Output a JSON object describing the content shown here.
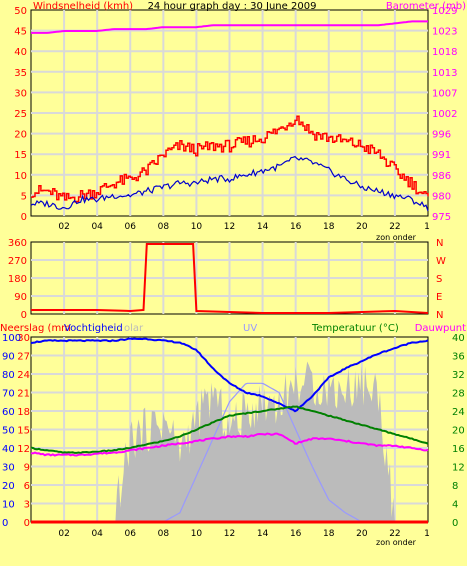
{
  "title": "24 hour graph day : 30 June 2009",
  "colors": {
    "background": "#ffff99",
    "grid": "#d9d9d9",
    "wind": "#ff0000",
    "gust": "#0000cc",
    "barometer": "#ff00ff",
    "humidity": "#0000ff",
    "temperature": "#008000",
    "dewpoint": "#ff00ff",
    "rain": "#ff0000",
    "solar": "#bbbbbb",
    "uv": "#9999ff",
    "direction": "#ff0000"
  },
  "panel1": {
    "left_label": "Windsnelheid (kmh)",
    "right_label": "Barometer (mb)",
    "left_ticks": [
      "50",
      "45",
      "40",
      "35",
      "30",
      "25",
      "20",
      "15",
      "10",
      "5",
      "0"
    ],
    "right_ticks": [
      "1029",
      "1023",
      "1018",
      "1013",
      "1007",
      "1002",
      "996",
      "991",
      "986",
      "980",
      "975"
    ],
    "x_ticks": [
      "02",
      "04",
      "06",
      "08",
      "10",
      "12",
      "14",
      "16",
      "18",
      "20",
      "22"
    ],
    "x_end": "1",
    "zon_onder": "zon onder"
  },
  "panel2": {
    "left_ticks": [
      "360",
      "270",
      "180",
      "90",
      "0"
    ],
    "right_ticks": [
      "N",
      "W",
      "S",
      "E",
      "N"
    ]
  },
  "panel3": {
    "left_label": "Neerslag (mm",
    "humidity_label": "Vochtigheid",
    "solar_label": "olar",
    "uv_label": "UV",
    "right_label": "Temperatuur (°C)",
    "dew_label": "Dauwpunt",
    "rain_ticks": [
      "30",
      "27",
      "24",
      "21",
      "18",
      "15",
      "12",
      "9",
      "6",
      "3",
      "0"
    ],
    "humidity_ticks": [
      "100",
      "90",
      "80",
      "70",
      "60",
      "50",
      "40",
      "30",
      "20",
      "10",
      "0"
    ],
    "temp_ticks": [
      "40",
      "36",
      "32",
      "28",
      "24",
      "20",
      "16",
      "12",
      "8",
      "4",
      "0"
    ],
    "x_ticks": [
      "02",
      "04",
      "06",
      "08",
      "10",
      "12",
      "14",
      "16",
      "18",
      "20",
      "22"
    ],
    "x_end": "1",
    "zon_onder": "zon onder"
  },
  "chart_data": [
    {
      "type": "line",
      "xlabel": "",
      "ylabel": "Windsnelheid (kmh)",
      "y2label": "Barometer (mb)",
      "ylim": [
        0,
        50
      ],
      "y2lim": [
        975,
        1029
      ],
      "x_hours": [
        0,
        1,
        2,
        3,
        4,
        5,
        6,
        7,
        8,
        9,
        10,
        11,
        12,
        13,
        14,
        15,
        16,
        17,
        18,
        19,
        20,
        21,
        22,
        23,
        24
      ],
      "series": [
        {
          "name": "Windsnelheid",
          "axis": "left",
          "values": [
            6,
            6,
            4,
            5,
            6,
            8,
            9,
            11,
            15,
            17,
            16,
            17,
            17,
            18,
            19,
            21,
            24,
            20,
            19,
            18,
            17,
            15,
            11,
            8,
            4
          ]
        },
        {
          "name": "Windstoten",
          "axis": "left",
          "values": [
            3,
            3,
            2,
            4,
            4,
            5,
            5,
            6,
            7,
            8,
            8,
            9,
            9,
            10,
            11,
            12,
            14,
            13,
            11,
            9,
            7,
            6,
            5,
            4,
            2
          ]
        },
        {
          "name": "Barometer",
          "axis": "right",
          "values": [
            1023,
            1023,
            1023.5,
            1023.5,
            1023.5,
            1024,
            1024,
            1024,
            1024.5,
            1024.5,
            1024.5,
            1025,
            1025,
            1025,
            1025,
            1025,
            1025,
            1025,
            1025,
            1025,
            1025,
            1025,
            1025.5,
            1026,
            1026
          ]
        }
      ]
    },
    {
      "type": "line",
      "ylabel": "",
      "ylim": [
        0,
        360
      ],
      "x_hours": [
        0,
        2,
        4,
        6,
        6.8,
        7,
        8,
        9,
        9.8,
        10,
        12,
        14,
        16,
        18,
        20,
        22,
        24
      ],
      "series": [
        {
          "name": "Windrichting",
          "values": [
            20,
            20,
            20,
            15,
            20,
            350,
            350,
            350,
            350,
            15,
            10,
            5,
            5,
            5,
            10,
            15,
            5
          ]
        }
      ]
    },
    {
      "type": "line",
      "ylabel": "Neerslag (mm",
      "ylim": [
        0,
        30
      ],
      "x_hours": [
        0,
        1,
        2,
        3,
        4,
        5,
        6,
        7,
        8,
        9,
        10,
        11,
        12,
        13,
        14,
        15,
        16,
        17,
        18,
        19,
        20,
        21,
        22,
        23,
        24
      ],
      "series": [
        {
          "name": "Vochtigheid",
          "axis": "humidity",
          "ylim": [
            0,
            100
          ],
          "values": [
            97,
            98,
            98,
            98,
            98,
            98,
            99,
            99,
            98,
            97,
            93,
            83,
            75,
            70,
            68,
            64,
            60,
            68,
            78,
            83,
            87,
            91,
            94,
            97,
            98
          ]
        },
        {
          "name": "Temperatuur",
          "axis": "right",
          "ylim": [
            0,
            40
          ],
          "values": [
            16,
            15.5,
            15,
            15,
            15.2,
            15.5,
            16,
            16.8,
            17.5,
            18.5,
            20,
            21.5,
            23,
            23.5,
            24,
            24.5,
            25,
            24,
            23,
            22,
            21,
            20,
            19,
            18,
            17
          ]
        },
        {
          "name": "Dauwpunt",
          "axis": "right",
          "ylim": [
            0,
            40
          ],
          "values": [
            15,
            14.5,
            14.5,
            14.5,
            14.8,
            15,
            15.5,
            16,
            16.5,
            17,
            17.5,
            18,
            18.5,
            18.5,
            19,
            19,
            17,
            18,
            18,
            17.5,
            17,
            16.5,
            16.5,
            16,
            15.5
          ]
        },
        {
          "name": "Solar",
          "axis": "humidity",
          "ylim": [
            0,
            100
          ],
          "values": [
            0,
            0,
            0,
            0,
            0,
            0,
            45,
            50,
            55,
            40,
            55,
            70,
            50,
            60,
            65,
            65,
            75,
            75,
            72,
            72,
            75,
            70,
            0,
            0,
            0
          ]
        },
        {
          "name": "UV",
          "axis": "humidity",
          "ylim": [
            0,
            100
          ],
          "values": [
            0,
            0,
            0,
            0,
            0,
            0,
            0,
            0,
            0,
            5,
            25,
            45,
            65,
            75,
            75,
            70,
            50,
            30,
            12,
            5,
            0,
            0,
            0,
            0,
            0
          ]
        },
        {
          "name": "Neerslag",
          "axis": "left",
          "ylim": [
            0,
            30
          ],
          "values": [
            0,
            0,
            0,
            0,
            0,
            0,
            0,
            0,
            0,
            0,
            0,
            0,
            0,
            0,
            0,
            0,
            0,
            0,
            0,
            0,
            0,
            0,
            0,
            0,
            0
          ]
        }
      ]
    }
  ]
}
